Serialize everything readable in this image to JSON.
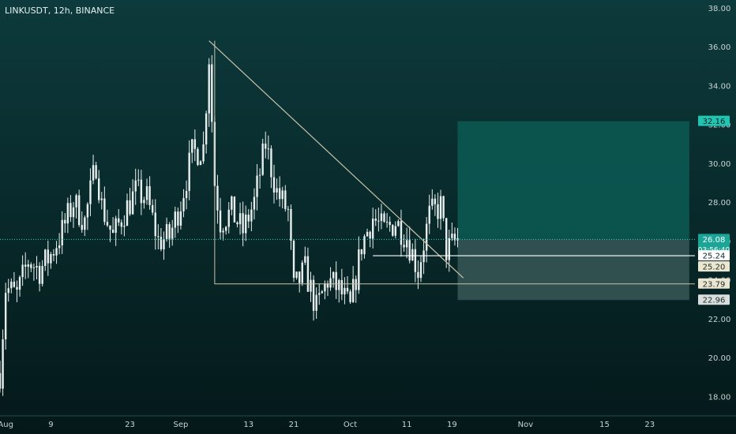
{
  "header": {
    "symbol_label": "LINKUSDT, 12h, BINANCE"
  },
  "colors": {
    "background_top": "#0d3a3c",
    "background_bottom": "#041819",
    "candle": "#e8efee",
    "axis_text": "#c9d4d3",
    "trendline": "#c9c2a8",
    "target_zone": "#0c5a54",
    "stop_zone": "#3b5a5a",
    "price_line": "#2fd6c0"
  },
  "chart_data": {
    "type": "candlestick",
    "ylim": [
      17,
      38.4
    ],
    "y_ticks": [
      "38.00",
      "36.00",
      "34.00",
      "32.00",
      "30.00",
      "28.00",
      "26.00",
      "24.00",
      "22.00",
      "20.00",
      "18.00"
    ],
    "x_ticks": [
      "Aug",
      "9",
      "23",
      "Sep",
      "13",
      "21",
      "Oct",
      "11",
      "19",
      "Nov",
      "15",
      "23"
    ],
    "x_tick_dates": [
      "2021-08-01",
      "2021-08-09",
      "2021-08-23",
      "2021-09-01",
      "2021-09-13",
      "2021-09-21",
      "2021-10-01",
      "2021-10-11",
      "2021-10-19",
      "2021-11-01",
      "2021-11-15",
      "2021-11-23"
    ],
    "xlim": [
      "2021-07-31",
      "2021-12-01"
    ],
    "candles_range": [
      "2021-07-31",
      "2021-10-20"
    ],
    "close_path": [
      [
        "2021-07-31",
        19.2
      ],
      [
        "2021-08-01",
        23.6
      ],
      [
        "2021-08-03",
        23.2
      ],
      [
        "2021-08-05",
        25.0
      ],
      [
        "2021-08-07",
        24.5
      ],
      [
        "2021-08-09",
        25.3
      ],
      [
        "2021-08-11",
        26.5
      ],
      [
        "2021-08-13",
        28.0
      ],
      [
        "2021-08-15",
        27.0
      ],
      [
        "2021-08-17",
        30.0
      ],
      [
        "2021-08-18",
        27.8
      ],
      [
        "2021-08-20",
        26.2
      ],
      [
        "2021-08-22",
        27.5
      ],
      [
        "2021-08-24",
        28.5
      ],
      [
        "2021-08-26",
        28.2
      ],
      [
        "2021-08-28",
        26.0
      ],
      [
        "2021-08-30",
        26.2
      ],
      [
        "2021-09-01",
        28.0
      ],
      [
        "2021-09-03",
        30.5
      ],
      [
        "2021-09-05",
        30.8
      ],
      [
        "2021-09-06",
        35.5
      ],
      [
        "2021-09-07",
        29.0
      ],
      [
        "2021-09-08",
        27.0
      ],
      [
        "2021-09-10",
        27.5
      ],
      [
        "2021-09-12",
        26.5
      ],
      [
        "2021-09-14",
        28.0
      ],
      [
        "2021-09-16",
        31.0
      ],
      [
        "2021-09-18",
        28.5
      ],
      [
        "2021-09-20",
        27.5
      ],
      [
        "2021-09-21",
        23.5
      ],
      [
        "2021-09-23",
        24.5
      ],
      [
        "2021-09-25",
        22.5
      ],
      [
        "2021-09-27",
        24.0
      ],
      [
        "2021-09-29",
        23.5
      ],
      [
        "2021-10-01",
        22.5
      ],
      [
        "2021-10-03",
        25.8
      ],
      [
        "2021-10-05",
        27.2
      ],
      [
        "2021-10-07",
        26.5
      ],
      [
        "2021-10-09",
        27.0
      ],
      [
        "2021-10-11",
        26.2
      ],
      [
        "2021-10-13",
        24.5
      ],
      [
        "2021-10-15",
        27.3
      ],
      [
        "2021-10-17",
        27.8
      ],
      [
        "2021-10-18",
        25.5
      ],
      [
        "2021-10-20",
        26.08
      ]
    ],
    "trendline": {
      "start": [
        "2021-09-06",
        36.3
      ],
      "end": [
        "2021-10-21",
        24.1
      ]
    },
    "resistance_box": {
      "top": 25.24,
      "bottom": 23.79,
      "from": "2021-09-07",
      "to": "2021-12-01"
    },
    "position": {
      "from": "2021-10-20",
      "to": "2021-11-30",
      "target": 32.16,
      "entry": 26.08,
      "stop": 22.96
    },
    "current_price": 26.08,
    "countdown": "03:56:40",
    "price_labels": [
      {
        "value": 32.16,
        "text": "32.16",
        "kind": "target"
      },
      {
        "value": 26.08,
        "text": "26.08",
        "kind": "current"
      },
      {
        "value": 25.24,
        "text": "25.24",
        "kind": "level-dark"
      },
      {
        "value": 25.2,
        "text": "25.20",
        "kind": "level-light"
      },
      {
        "value": 23.79,
        "text": "23.79",
        "kind": "level-light"
      },
      {
        "value": 22.96,
        "text": "22.96",
        "kind": "stop"
      }
    ]
  }
}
